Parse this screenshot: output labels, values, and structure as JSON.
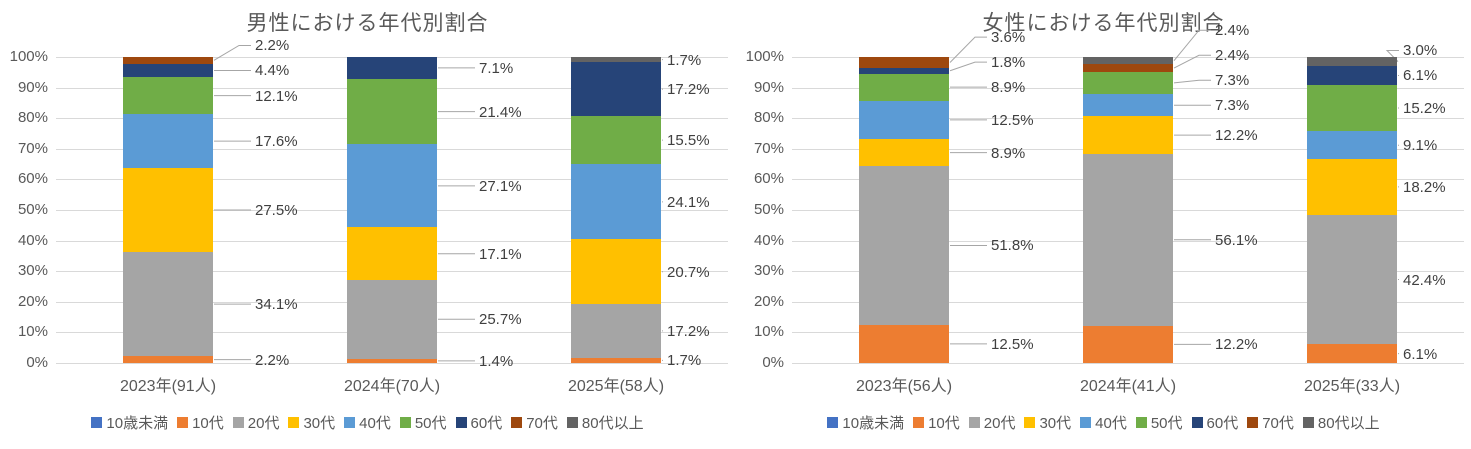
{
  "palette": {
    "background": "#FFFFFF",
    "gridline": "#D9D9D9",
    "leader_line": "#A6A6A6",
    "axis_text": "#595959",
    "data_label_text": "#404040",
    "title_text": "#595959",
    "legend_text": "#595959"
  },
  "chart_data": [
    {
      "type": "bar",
      "subtype": "stacked-100-percent-column",
      "title": "男性における年代別割合",
      "categories": [
        "2023年(91人)",
        "2024年(70人)",
        "2025年(58人)"
      ],
      "y_ticks": [
        "0%",
        "10%",
        "20%",
        "30%",
        "40%",
        "50%",
        "60%",
        "70%",
        "80%",
        "90%",
        "100%"
      ],
      "ylim": [
        0,
        100
      ],
      "grid": true,
      "legend_position": "bottom",
      "unit": "%",
      "series": [
        {
          "name": "10歳未満",
          "color": "#4472C4",
          "values": [
            null,
            null,
            null
          ]
        },
        {
          "name": "10代",
          "color": "#ED7D31",
          "values": [
            2.2,
            1.4,
            1.7
          ]
        },
        {
          "name": "20代",
          "color": "#A5A5A5",
          "values": [
            34.1,
            25.7,
            17.2
          ]
        },
        {
          "name": "30代",
          "color": "#FFC000",
          "values": [
            27.5,
            17.1,
            20.7
          ]
        },
        {
          "name": "40代",
          "color": "#5B9BD5",
          "values": [
            17.6,
            27.1,
            24.1
          ]
        },
        {
          "name": "50代",
          "color": "#70AD47",
          "values": [
            12.1,
            21.4,
            15.5
          ]
        },
        {
          "name": "60代",
          "color": "#264478",
          "values": [
            4.4,
            7.1,
            17.2
          ]
        },
        {
          "name": "70代",
          "color": "#9E480E",
          "values": [
            2.2,
            null,
            null
          ]
        },
        {
          "name": "80代以上",
          "color": "#636363",
          "values": [
            null,
            null,
            1.7
          ]
        }
      ]
    },
    {
      "type": "bar",
      "subtype": "stacked-100-percent-column",
      "title": "女性における年代別割合",
      "categories": [
        "2023年(56人)",
        "2024年(41人)",
        "2025年(33人)"
      ],
      "y_ticks": [
        "0%",
        "10%",
        "20%",
        "30%",
        "40%",
        "50%",
        "60%",
        "70%",
        "80%",
        "90%",
        "100%"
      ],
      "ylim": [
        0,
        100
      ],
      "grid": true,
      "legend_position": "bottom",
      "unit": "%",
      "series": [
        {
          "name": "10歳未満",
          "color": "#4472C4",
          "values": [
            null,
            null,
            null
          ]
        },
        {
          "name": "10代",
          "color": "#ED7D31",
          "values": [
            12.5,
            12.2,
            6.1
          ]
        },
        {
          "name": "20代",
          "color": "#A5A5A5",
          "values": [
            51.8,
            56.1,
            42.4
          ]
        },
        {
          "name": "30代",
          "color": "#FFC000",
          "values": [
            8.9,
            12.2,
            18.2
          ]
        },
        {
          "name": "40代",
          "color": "#5B9BD5",
          "values": [
            12.5,
            7.3,
            9.1
          ]
        },
        {
          "name": "50代",
          "color": "#70AD47",
          "values": [
            8.9,
            7.3,
            15.2
          ]
        },
        {
          "name": "60代",
          "color": "#264478",
          "values": [
            1.8,
            null,
            6.1
          ]
        },
        {
          "name": "70代",
          "color": "#9E480E",
          "values": [
            3.6,
            2.4,
            null
          ]
        },
        {
          "name": "80代以上",
          "color": "#636363",
          "values": [
            null,
            2.4,
            3.0
          ]
        }
      ]
    }
  ]
}
